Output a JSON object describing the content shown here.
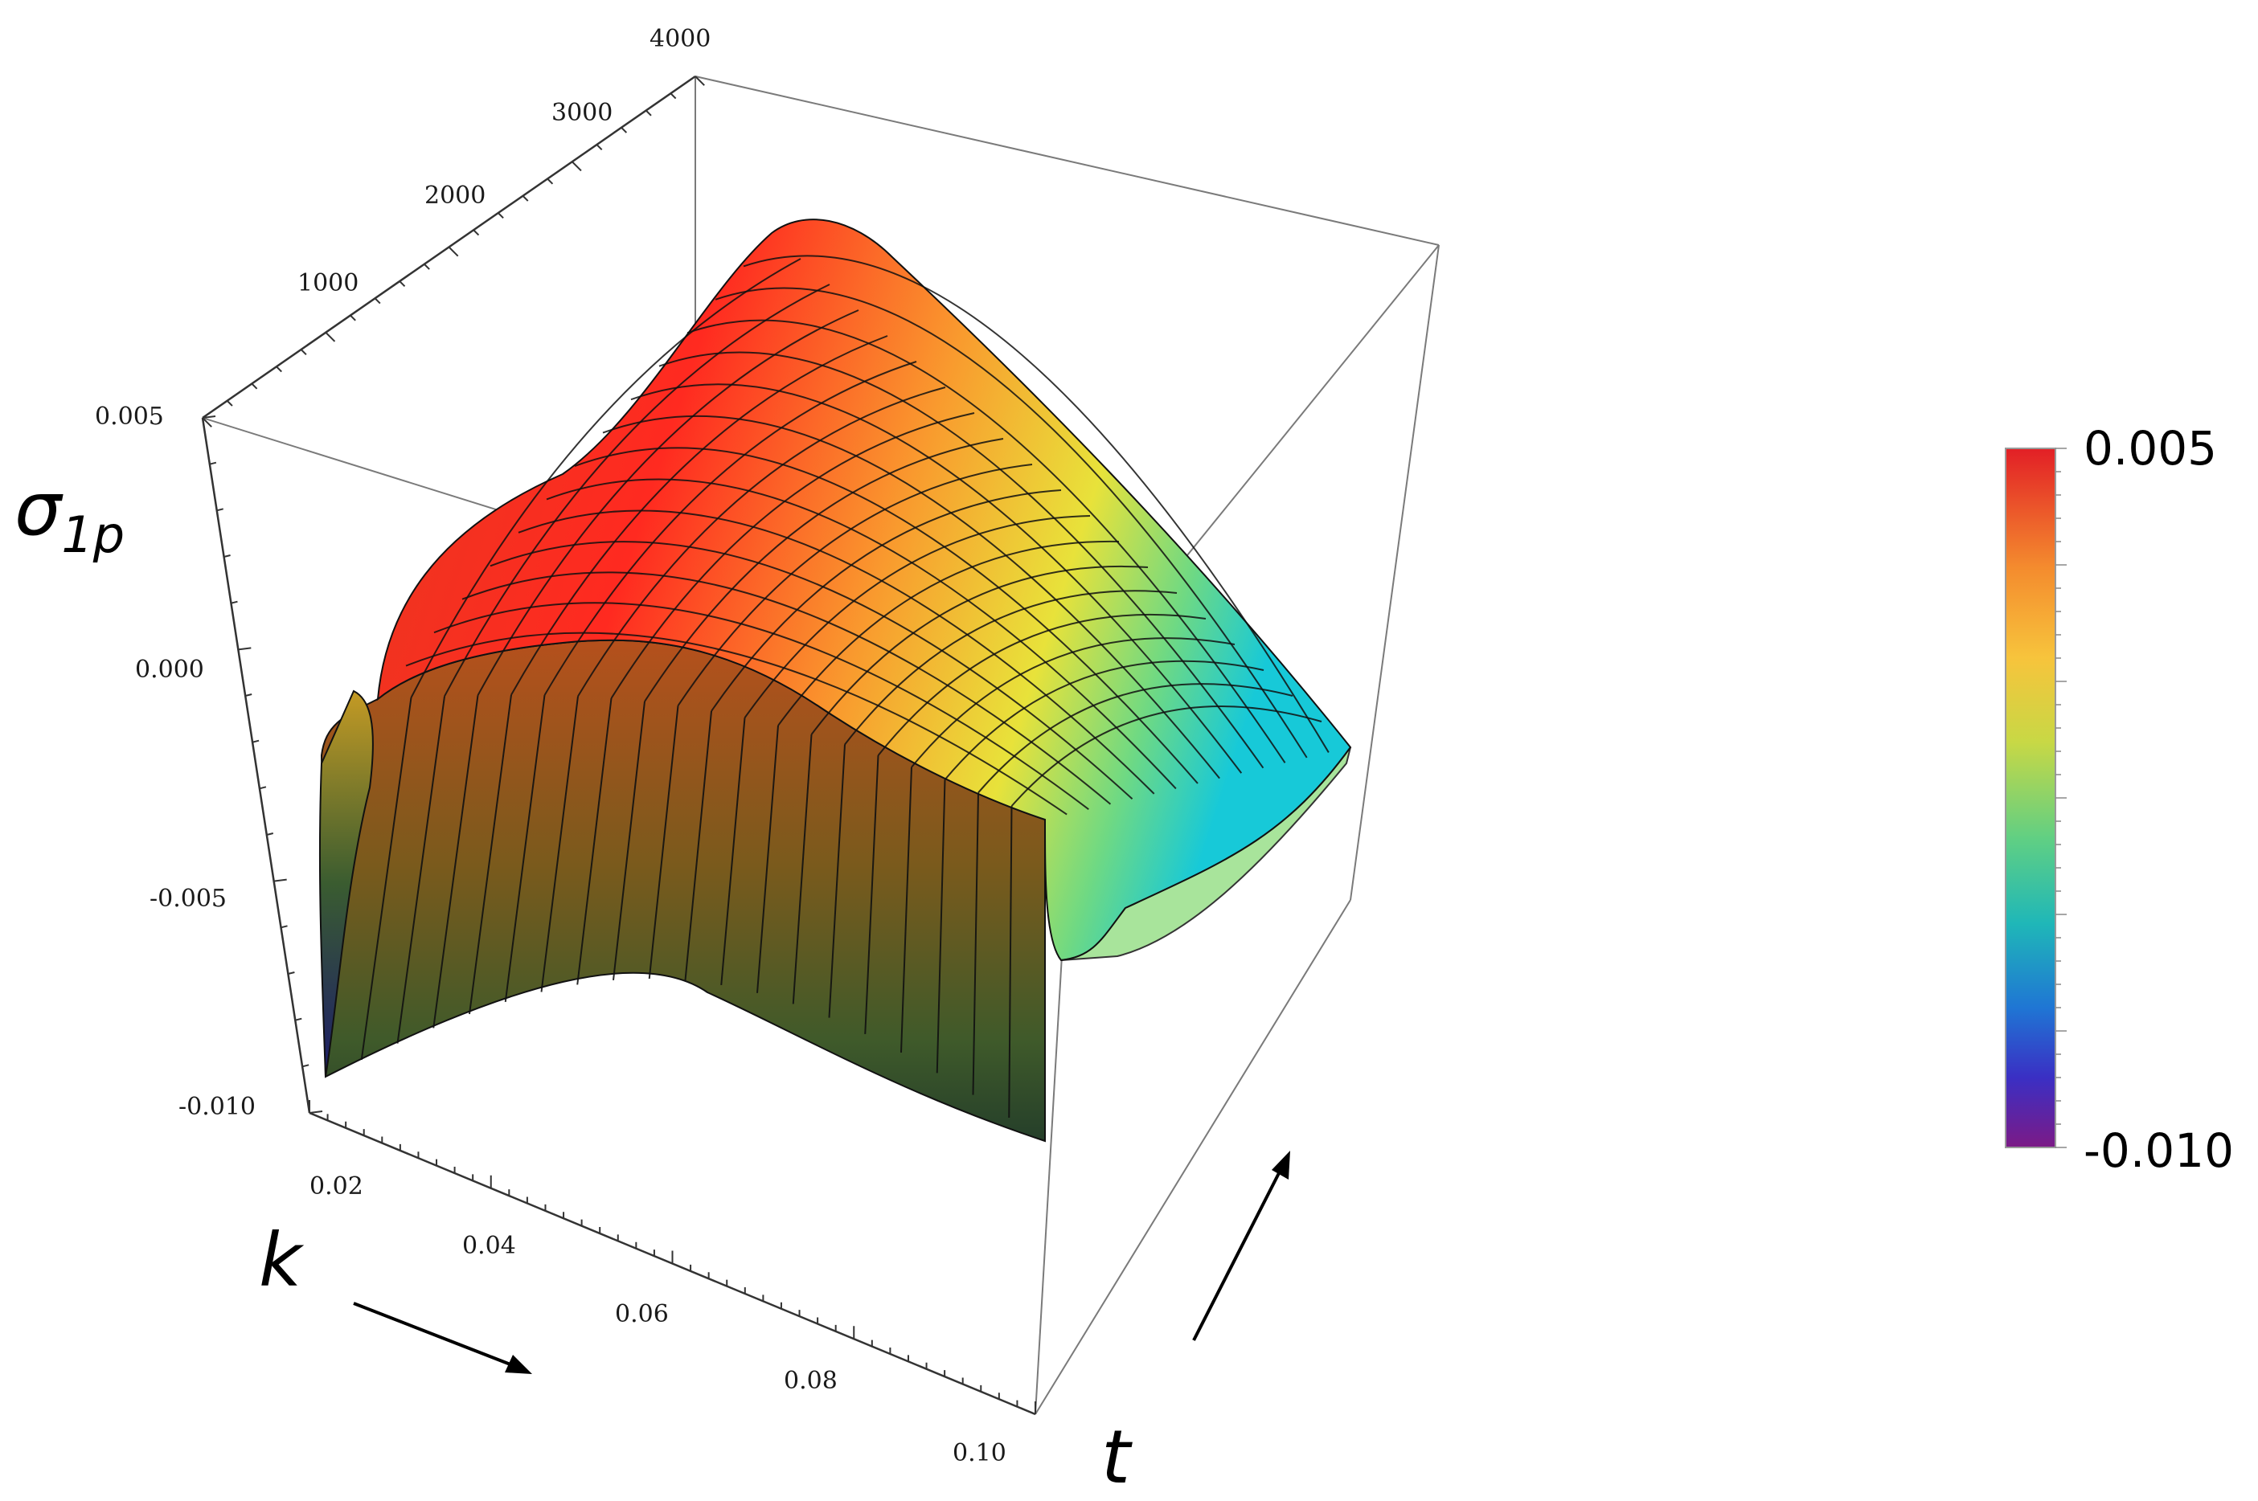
{
  "chart_data": {
    "type": "surface",
    "zlabel": "σ",
    "zlabel_sub": "1p",
    "xlabel": "k",
    "ylabel": "t",
    "x_ticks": [
      "0.02",
      "0.04",
      "0.06",
      "0.08",
      "0.10"
    ],
    "y_ticks": [
      "1000",
      "2000",
      "3000",
      "4000"
    ],
    "z_ticks": [
      "0.005",
      "0.000",
      "-0.005",
      "-0.010"
    ],
    "xlim": [
      0.015,
      0.1
    ],
    "ylim": [
      0,
      4000
    ],
    "zlim": [
      -0.01,
      0.005
    ],
    "colorbar": {
      "max_label": "0.005",
      "min_label": "-0.010",
      "colors": [
        "#e21f26",
        "#f7a23b",
        "#f2e83c",
        "#9fd05a",
        "#2fc3b0",
        "#1e8ad0",
        "#3b2fc0",
        "#7a1a8a"
      ]
    },
    "arrows": [
      "k increasing",
      "t increasing"
    ]
  }
}
